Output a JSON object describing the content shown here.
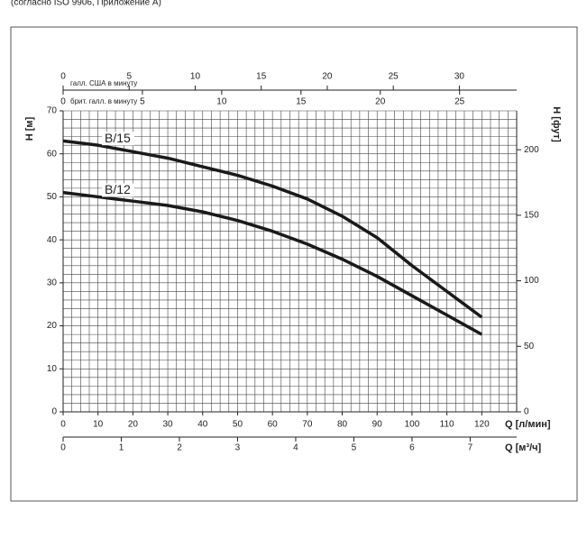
{
  "note_top": "(согласно ISO 9906, Приложение A)",
  "chart_data": {
    "type": "line",
    "xlabel": "Q [л/мин]",
    "ylabel": "H [м]",
    "y2label": "H [фут]",
    "xlim": [
      0,
      130
    ],
    "xticks": [
      0,
      10,
      20,
      30,
      40,
      50,
      60,
      70,
      80,
      90,
      100,
      110,
      120
    ],
    "ylim": [
      0,
      70
    ],
    "yticks": [
      0,
      10,
      20,
      30,
      40,
      50,
      60,
      70
    ],
    "y2lim": [
      0,
      229.66
    ],
    "y2ticks": [
      0,
      50,
      100,
      150,
      200
    ],
    "us_gallon_axis": {
      "label": "галл. США в минуту",
      "xlim": [
        0,
        34.34
      ],
      "xticks": [
        0,
        5,
        10,
        15,
        20,
        25,
        30
      ]
    },
    "uk_gallon_axis": {
      "label": "брит. галл. в минуту",
      "xlim": [
        0,
        28.6
      ],
      "xticks": [
        0,
        5,
        10,
        15,
        20,
        25
      ]
    },
    "m3h_axis": {
      "label": "Q [м³/ч]",
      "xlim": [
        0,
        7.8
      ],
      "xticks": [
        0,
        1,
        2,
        3,
        4,
        5,
        6,
        7
      ]
    },
    "grid": true,
    "x": [
      0,
      10,
      20,
      30,
      40,
      50,
      60,
      70,
      80,
      90,
      100,
      110,
      120
    ],
    "series": [
      {
        "name": "B/15",
        "color": "#1a1a1a",
        "values": [
          63,
          62,
          60.5,
          59,
          57,
          55,
          52.5,
          49.5,
          45.5,
          40.5,
          34,
          28,
          22
        ]
      },
      {
        "name": "B/12",
        "color": "#1a1a1a",
        "values": [
          51,
          50,
          49,
          48,
          46.5,
          44.5,
          42,
          39,
          35.5,
          31.5,
          27,
          22.5,
          18
        ]
      }
    ]
  }
}
